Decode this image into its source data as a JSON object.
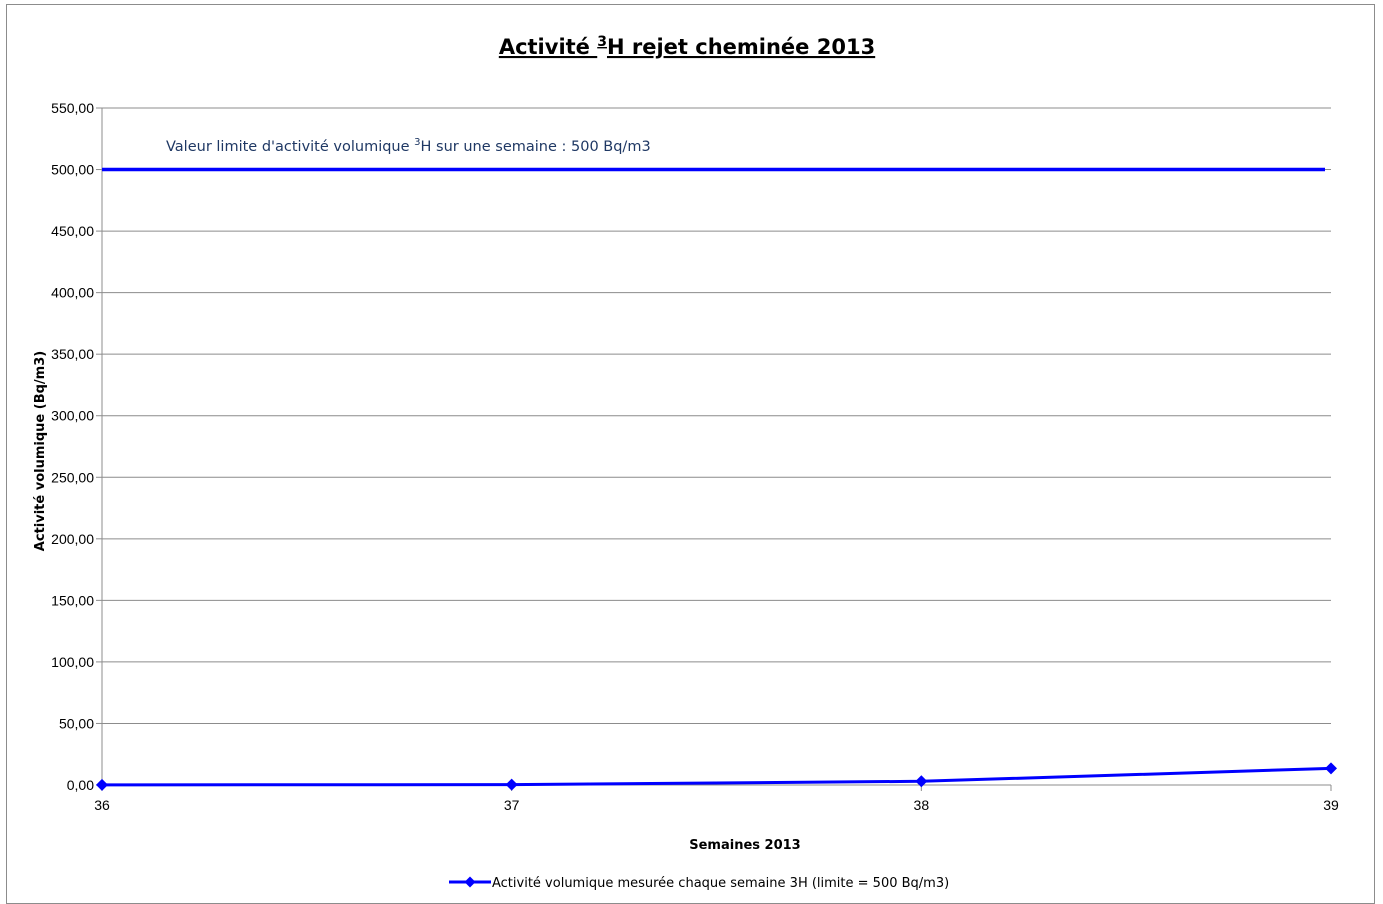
{
  "chart_data": {
    "type": "line",
    "title_main": "Activité ",
    "title_sup": "3",
    "title_rest": "H rejet cheminée 2013",
    "xlabel": "Semaines 2013",
    "ylabel": "Activité volumique (Bq/m3)",
    "x": [
      36,
      37,
      38,
      39
    ],
    "x_tick_labels": [
      "36",
      "37",
      "38",
      "39"
    ],
    "ylim": [
      0,
      550
    ],
    "y_tick_labels": [
      "0,00",
      "50,00",
      "100,00",
      "150,00",
      "200,00",
      "250,00",
      "300,00",
      "350,00",
      "400,00",
      "450,00",
      "500,00",
      "550,00"
    ],
    "y_ticks": [
      0,
      50,
      100,
      150,
      200,
      250,
      300,
      350,
      400,
      450,
      500,
      550
    ],
    "grid": true,
    "series": [
      {
        "name": "Activité volumique mesurée chaque semaine 3H (limite = 500 Bq/m3)",
        "values": [
          0.1,
          0.3,
          3.0,
          13.5
        ],
        "color": "#0000ff",
        "marker": "diamond"
      }
    ],
    "limit_line": {
      "value": 500,
      "color": "#0000ff"
    },
    "annotation": {
      "text_before": "Valeur limite d'activité volumique ",
      "text_sup": "3",
      "text_after": "H  sur une semaine : 500 Bq/m3",
      "color": "#1f3864"
    },
    "legend_position": "bottom"
  }
}
